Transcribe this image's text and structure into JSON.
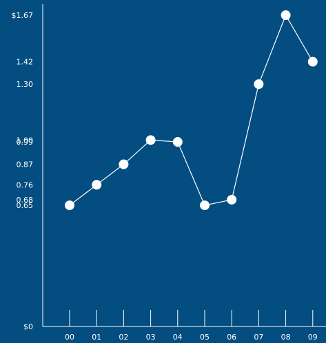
{
  "colors": {
    "background": "#034d80",
    "foreground": "#ffffff"
  },
  "chart_data": {
    "type": "line",
    "title": "",
    "xlabel": "",
    "ylabel": "",
    "ylim": [
      0,
      1.67
    ],
    "grid": false,
    "categories": [
      "00",
      "01",
      "02",
      "03",
      "04",
      "05",
      "06",
      "07",
      "08",
      "09"
    ],
    "series": [
      {
        "values": [
          0.65,
          0.76,
          0.87,
          1.0,
          0.99,
          0.65,
          0.68,
          1.3,
          1.67,
          1.42
        ]
      }
    ],
    "y_tick_labels": [
      {
        "value": 0,
        "label": "$0"
      },
      {
        "value": 0.65,
        "label": "0.65"
      },
      {
        "value": 0.68,
        "label": "0.68"
      },
      {
        "value": 0.76,
        "label": "0.76"
      },
      {
        "value": 0.87,
        "label": "0.87"
      },
      {
        "value": 0.99,
        "label": "0.99"
      },
      {
        "value": 1.0,
        "label": "1.00"
      },
      {
        "value": 1.3,
        "label": "1.30"
      },
      {
        "value": 1.42,
        "label": "1.42"
      },
      {
        "value": 1.67,
        "label": "$1.67"
      }
    ]
  }
}
